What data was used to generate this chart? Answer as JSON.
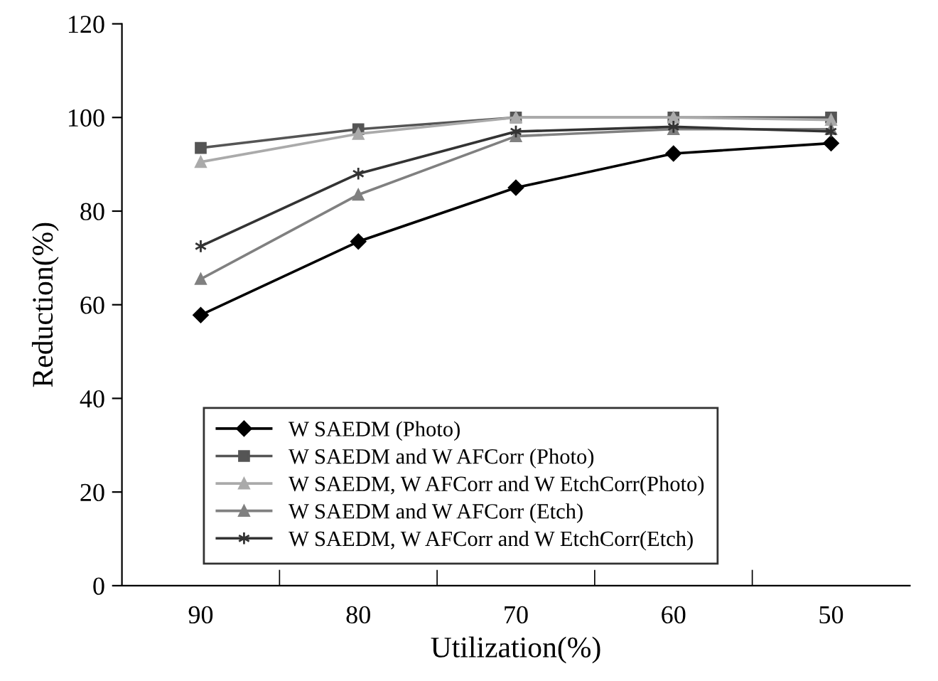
{
  "chart_data": {
    "type": "line",
    "xlabel": "Utilization(%)",
    "ylabel": "Reduction(%)",
    "categories": [
      "90",
      "80",
      "70",
      "60",
      "50"
    ],
    "ylim": [
      0,
      120
    ],
    "yticks": [
      0,
      20,
      40,
      60,
      80,
      100,
      120
    ],
    "grid": false,
    "legend": "bottom",
    "line_style": "solid",
    "series": [
      {
        "name": "W SAEDM (Photo)",
        "color": "#000000",
        "marker": "diamond",
        "values": [
          57.8,
          73.5,
          85,
          92.3,
          94.5
        ]
      },
      {
        "name": "W SAEDM and W AFCorr (Photo)",
        "color": "#555555",
        "marker": "square",
        "values": [
          93.5,
          97.5,
          100,
          100,
          100
        ]
      },
      {
        "name": "W SAEDM, W AFCorr and W EtchCorr(Photo)",
        "color": "#aaaaaa",
        "marker": "triangle",
        "values": [
          90.5,
          96.5,
          100,
          100,
          99.5
        ]
      },
      {
        "name": "W SAEDM and W AFCorr (Etch)",
        "color": "#808080",
        "marker": "triangle",
        "values": [
          65.5,
          83.5,
          96,
          97.5,
          97.5
        ]
      },
      {
        "name": "W SAEDM, W AFCorr and W EtchCorr(Etch)",
        "color": "#333333",
        "marker": "cross",
        "values": [
          72.5,
          88,
          97,
          98,
          97
        ]
      }
    ]
  }
}
